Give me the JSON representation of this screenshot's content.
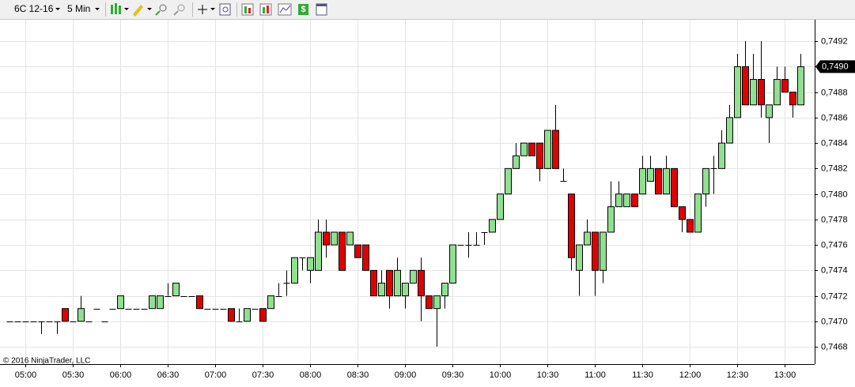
{
  "toolbar": {
    "instrument": "6C 12-16",
    "interval": "5 Min"
  },
  "chart_data": {
    "type": "candlestick",
    "copyright": "© 2016 NinjaTrader, LLC",
    "categories": [
      null,
      null,
      "05:00",
      null,
      null,
      null,
      null,
      null,
      "05:30",
      null,
      null,
      null,
      null,
      null,
      "06:00",
      null,
      null,
      null,
      null,
      null,
      "06:30",
      null,
      null,
      null,
      null,
      null,
      "07:00",
      null,
      null,
      null,
      null,
      null,
      "07:30",
      null,
      null,
      null,
      null,
      null,
      "08:00",
      null,
      null,
      null,
      null,
      null,
      "08:30",
      null,
      null,
      null,
      null,
      null,
      "09:00",
      null,
      null,
      null,
      null,
      null,
      "09:30",
      null,
      null,
      null,
      null,
      null,
      "10:00",
      null,
      null,
      null,
      null,
      null,
      "10:30",
      null,
      null,
      null,
      null,
      null,
      "11:00",
      null,
      null,
      null,
      null,
      null,
      "11:30",
      null,
      null,
      null,
      null,
      null,
      "12:00",
      null,
      null,
      null,
      null,
      null,
      "12:30",
      null,
      null,
      null,
      null,
      null,
      "13:00",
      null,
      null
    ],
    "open": [
      0.747,
      0.747,
      0.747,
      0.747,
      0.747,
      0.747,
      0.747,
      0.7471,
      0.747,
      0.747,
      0.747,
      0.7471,
      0.747,
      0.7471,
      0.7471,
      0.7471,
      0.7471,
      0.7471,
      0.7471,
      0.7471,
      0.7472,
      0.7472,
      0.7472,
      0.7472,
      0.7472,
      0.7471,
      0.7471,
      0.7471,
      0.7471,
      0.747,
      0.747,
      0.7471,
      0.7471,
      0.7471,
      0.7472,
      0.7473,
      0.7473,
      0.7475,
      0.7474,
      0.7474,
      0.7477,
      0.7476,
      0.7477,
      0.7476,
      0.7476,
      0.7476,
      0.7474,
      0.7472,
      0.7474,
      0.7472,
      0.7472,
      0.7473,
      0.7474,
      0.7472,
      0.7471,
      0.7472,
      0.7473,
      0.7476,
      0.7476,
      0.7476,
      0.7477,
      0.7477,
      0.7478,
      0.748,
      0.7482,
      0.7483,
      0.7484,
      0.7484,
      0.7482,
      0.7485,
      0.7481,
      0.748,
      0.7474,
      0.7476,
      0.7477,
      0.7474,
      0.7477,
      0.7479,
      0.7479,
      0.748,
      0.748,
      0.7481,
      0.7482,
      0.748,
      0.7482,
      0.7479,
      0.7478,
      0.7477,
      0.748,
      0.7482,
      0.7482,
      0.7484,
      0.7486,
      0.749,
      0.7487,
      0.7489,
      0.7486,
      0.7487,
      0.7489,
      0.7488,
      0.7487
    ],
    "high": [
      0.747,
      0.747,
      0.747,
      0.747,
      0.747,
      0.747,
      0.747,
      0.7471,
      0.747,
      0.7472,
      0.747,
      0.7471,
      0.747,
      0.7471,
      0.7472,
      0.7471,
      0.7471,
      0.7471,
      0.7472,
      0.7472,
      0.7473,
      0.7473,
      0.7472,
      0.7472,
      0.7472,
      0.7471,
      0.7471,
      0.7471,
      0.7471,
      0.7471,
      0.7471,
      0.7471,
      0.7471,
      0.7472,
      0.7473,
      0.7474,
      0.7475,
      0.7475,
      0.7475,
      0.7478,
      0.7478,
      0.7477,
      0.7477,
      0.7477,
      0.7476,
      0.7476,
      0.7474,
      0.7474,
      0.7474,
      0.7475,
      0.7473,
      0.7474,
      0.7475,
      0.7472,
      0.7472,
      0.7473,
      0.7476,
      0.7476,
      0.7477,
      0.7477,
      0.7477,
      0.7478,
      0.748,
      0.7482,
      0.7484,
      0.7484,
      0.7484,
      0.7484,
      0.7485,
      0.7487,
      0.7482,
      0.748,
      0.7476,
      0.7478,
      0.7477,
      0.7477,
      0.7481,
      0.7481,
      0.748,
      0.748,
      0.7483,
      0.7483,
      0.7482,
      0.7483,
      0.7482,
      0.7479,
      0.7478,
      0.748,
      0.7482,
      0.7483,
      0.7485,
      0.7487,
      0.7491,
      0.7492,
      0.7491,
      0.7492,
      0.7487,
      0.749,
      0.749,
      0.7488,
      0.7491
    ],
    "low": [
      0.747,
      0.747,
      0.747,
      0.747,
      0.7469,
      0.747,
      0.7469,
      0.747,
      0.747,
      0.747,
      0.747,
      0.7471,
      0.747,
      0.7471,
      0.7471,
      0.7471,
      0.7471,
      0.7471,
      0.7471,
      0.7471,
      0.7472,
      0.7472,
      0.7472,
      0.7472,
      0.7471,
      0.7471,
      0.7471,
      0.7471,
      0.747,
      0.747,
      0.747,
      0.7471,
      0.747,
      0.7471,
      0.7472,
      0.7472,
      0.7473,
      0.7474,
      0.7473,
      0.7474,
      0.7475,
      0.7476,
      0.7474,
      0.7476,
      0.7475,
      0.7474,
      0.7472,
      0.7472,
      0.7471,
      0.7472,
      0.7471,
      0.7473,
      0.747,
      0.7471,
      0.7468,
      0.7471,
      0.7473,
      0.7476,
      0.7475,
      0.7476,
      0.7476,
      0.7477,
      0.7478,
      0.748,
      0.7482,
      0.7483,
      0.7483,
      0.7481,
      0.7482,
      0.7482,
      0.7481,
      0.7474,
      0.7472,
      0.7476,
      0.7472,
      0.7473,
      0.7477,
      0.7479,
      0.7479,
      0.7479,
      0.748,
      0.7481,
      0.748,
      0.748,
      0.7479,
      0.7477,
      0.7477,
      0.7477,
      0.7479,
      0.748,
      0.7482,
      0.7484,
      0.7486,
      0.7487,
      0.7487,
      0.7486,
      0.7484,
      0.7487,
      0.7488,
      0.7486,
      0.7487
    ],
    "close": [
      0.747,
      0.747,
      0.747,
      0.747,
      0.747,
      0.747,
      0.747,
      0.747,
      0.747,
      0.7471,
      0.747,
      0.7471,
      0.747,
      0.7471,
      0.7472,
      0.7471,
      0.7471,
      0.7471,
      0.7472,
      0.7472,
      0.7472,
      0.7473,
      0.7472,
      0.7472,
      0.7471,
      0.7471,
      0.7471,
      0.7471,
      0.747,
      0.747,
      0.7471,
      0.7471,
      0.747,
      0.7472,
      0.7472,
      0.7473,
      0.7475,
      0.7475,
      0.7475,
      0.7477,
      0.7476,
      0.7477,
      0.7474,
      0.7477,
      0.7475,
      0.7474,
      0.7472,
      0.7473,
      0.7472,
      0.7474,
      0.7473,
      0.7474,
      0.7472,
      0.7471,
      0.7472,
      0.7473,
      0.7476,
      0.7476,
      0.7476,
      0.7476,
      0.7477,
      0.7478,
      0.748,
      0.7482,
      0.7483,
      0.7484,
      0.7483,
      0.7482,
      0.7485,
      0.7482,
      0.7481,
      0.7475,
      0.7476,
      0.7477,
      0.7474,
      0.7477,
      0.7479,
      0.748,
      0.748,
      0.7479,
      0.7482,
      0.7482,
      0.748,
      0.7482,
      0.7479,
      0.7478,
      0.7477,
      0.748,
      0.7482,
      0.7482,
      0.7484,
      0.7486,
      0.749,
      0.7487,
      0.7489,
      0.7487,
      0.7487,
      0.7489,
      0.7488,
      0.7487,
      0.749
    ],
    "up_color": "#90e090",
    "down_color": "#e00000",
    "ylim": [
      0.74667,
      0.74935
    ],
    "yticks": [
      {
        "value": 0.7468,
        "label": "0,7468"
      },
      {
        "value": 0.747,
        "label": "0,7470"
      },
      {
        "value": 0.7472,
        "label": "0,7472"
      },
      {
        "value": 0.7474,
        "label": "0,7474"
      },
      {
        "value": 0.7476,
        "label": "0,7476"
      },
      {
        "value": 0.7478,
        "label": "0,7478"
      },
      {
        "value": 0.748,
        "label": "0,7480"
      },
      {
        "value": 0.7482,
        "label": "0,7482"
      },
      {
        "value": 0.7484,
        "label": "0,7484"
      },
      {
        "value": 0.7486,
        "label": "0,7486"
      },
      {
        "value": 0.7488,
        "label": "0,7488"
      },
      {
        "value": 0.749,
        "label": "0,7490"
      },
      {
        "value": 0.7492,
        "label": "0,7492"
      }
    ],
    "last_price": {
      "value": 0.749,
      "label": "0,7490"
    },
    "grid": true
  }
}
